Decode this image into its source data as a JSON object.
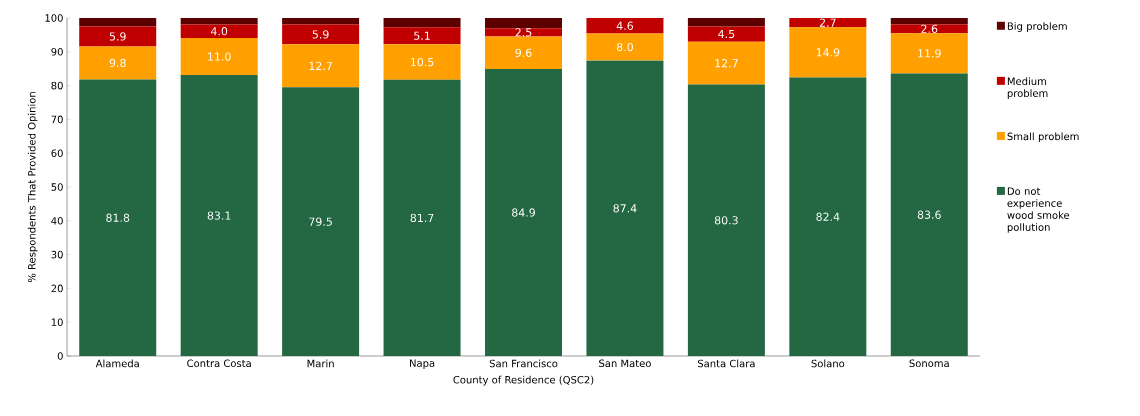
{
  "chart_data": {
    "type": "bar",
    "stacked": true,
    "xlabel": "County of Residence (QSC2)",
    "ylabel": "% Respondents That Provided Opinion",
    "categories": [
      "Alameda",
      "Contra Costa",
      "Marin",
      "Napa",
      "San Francisco",
      "San Mateo",
      "Santa Clara",
      "Solano",
      "Sonoma"
    ],
    "series": [
      {
        "name": "Do not experience wood smoke pollution",
        "color": "#236843",
        "values": [
          81.8,
          83.1,
          79.5,
          81.7,
          84.9,
          87.4,
          80.3,
          82.4,
          83.6
        ],
        "value_labels": [
          "81.8",
          "83.1",
          "79.5",
          "81.7",
          "84.9",
          "87.4",
          "80.3",
          "82.4",
          "83.6"
        ]
      },
      {
        "name": "Small problem",
        "color": "#ffa000",
        "values": [
          9.8,
          11.0,
          12.7,
          10.5,
          9.6,
          8.0,
          12.7,
          14.9,
          11.9
        ],
        "value_labels": [
          "9.8",
          "11.0",
          "12.7",
          "10.5",
          "9.6",
          "8.0",
          "12.7",
          "14.9",
          "11.9"
        ]
      },
      {
        "name": "Medium problem",
        "color": "#c00000",
        "values": [
          5.9,
          4.0,
          5.9,
          5.1,
          2.5,
          4.6,
          4.5,
          2.7,
          2.6
        ],
        "value_labels": [
          "5.9",
          "4.0",
          "5.9",
          "5.1",
          "2.5",
          "4.6",
          "4.5",
          "2.7",
          "2.6"
        ]
      },
      {
        "name": "Big problem",
        "color": "#5c0000",
        "values": [
          2.5,
          1.9,
          1.9,
          2.7,
          3.0,
          0,
          2.5,
          0,
          1.9
        ]
      }
    ],
    "ylim": [
      0,
      100
    ],
    "yticks": [
      0,
      10,
      20,
      30,
      40,
      50,
      60,
      70,
      80,
      90,
      100
    ],
    "legend": "right"
  }
}
